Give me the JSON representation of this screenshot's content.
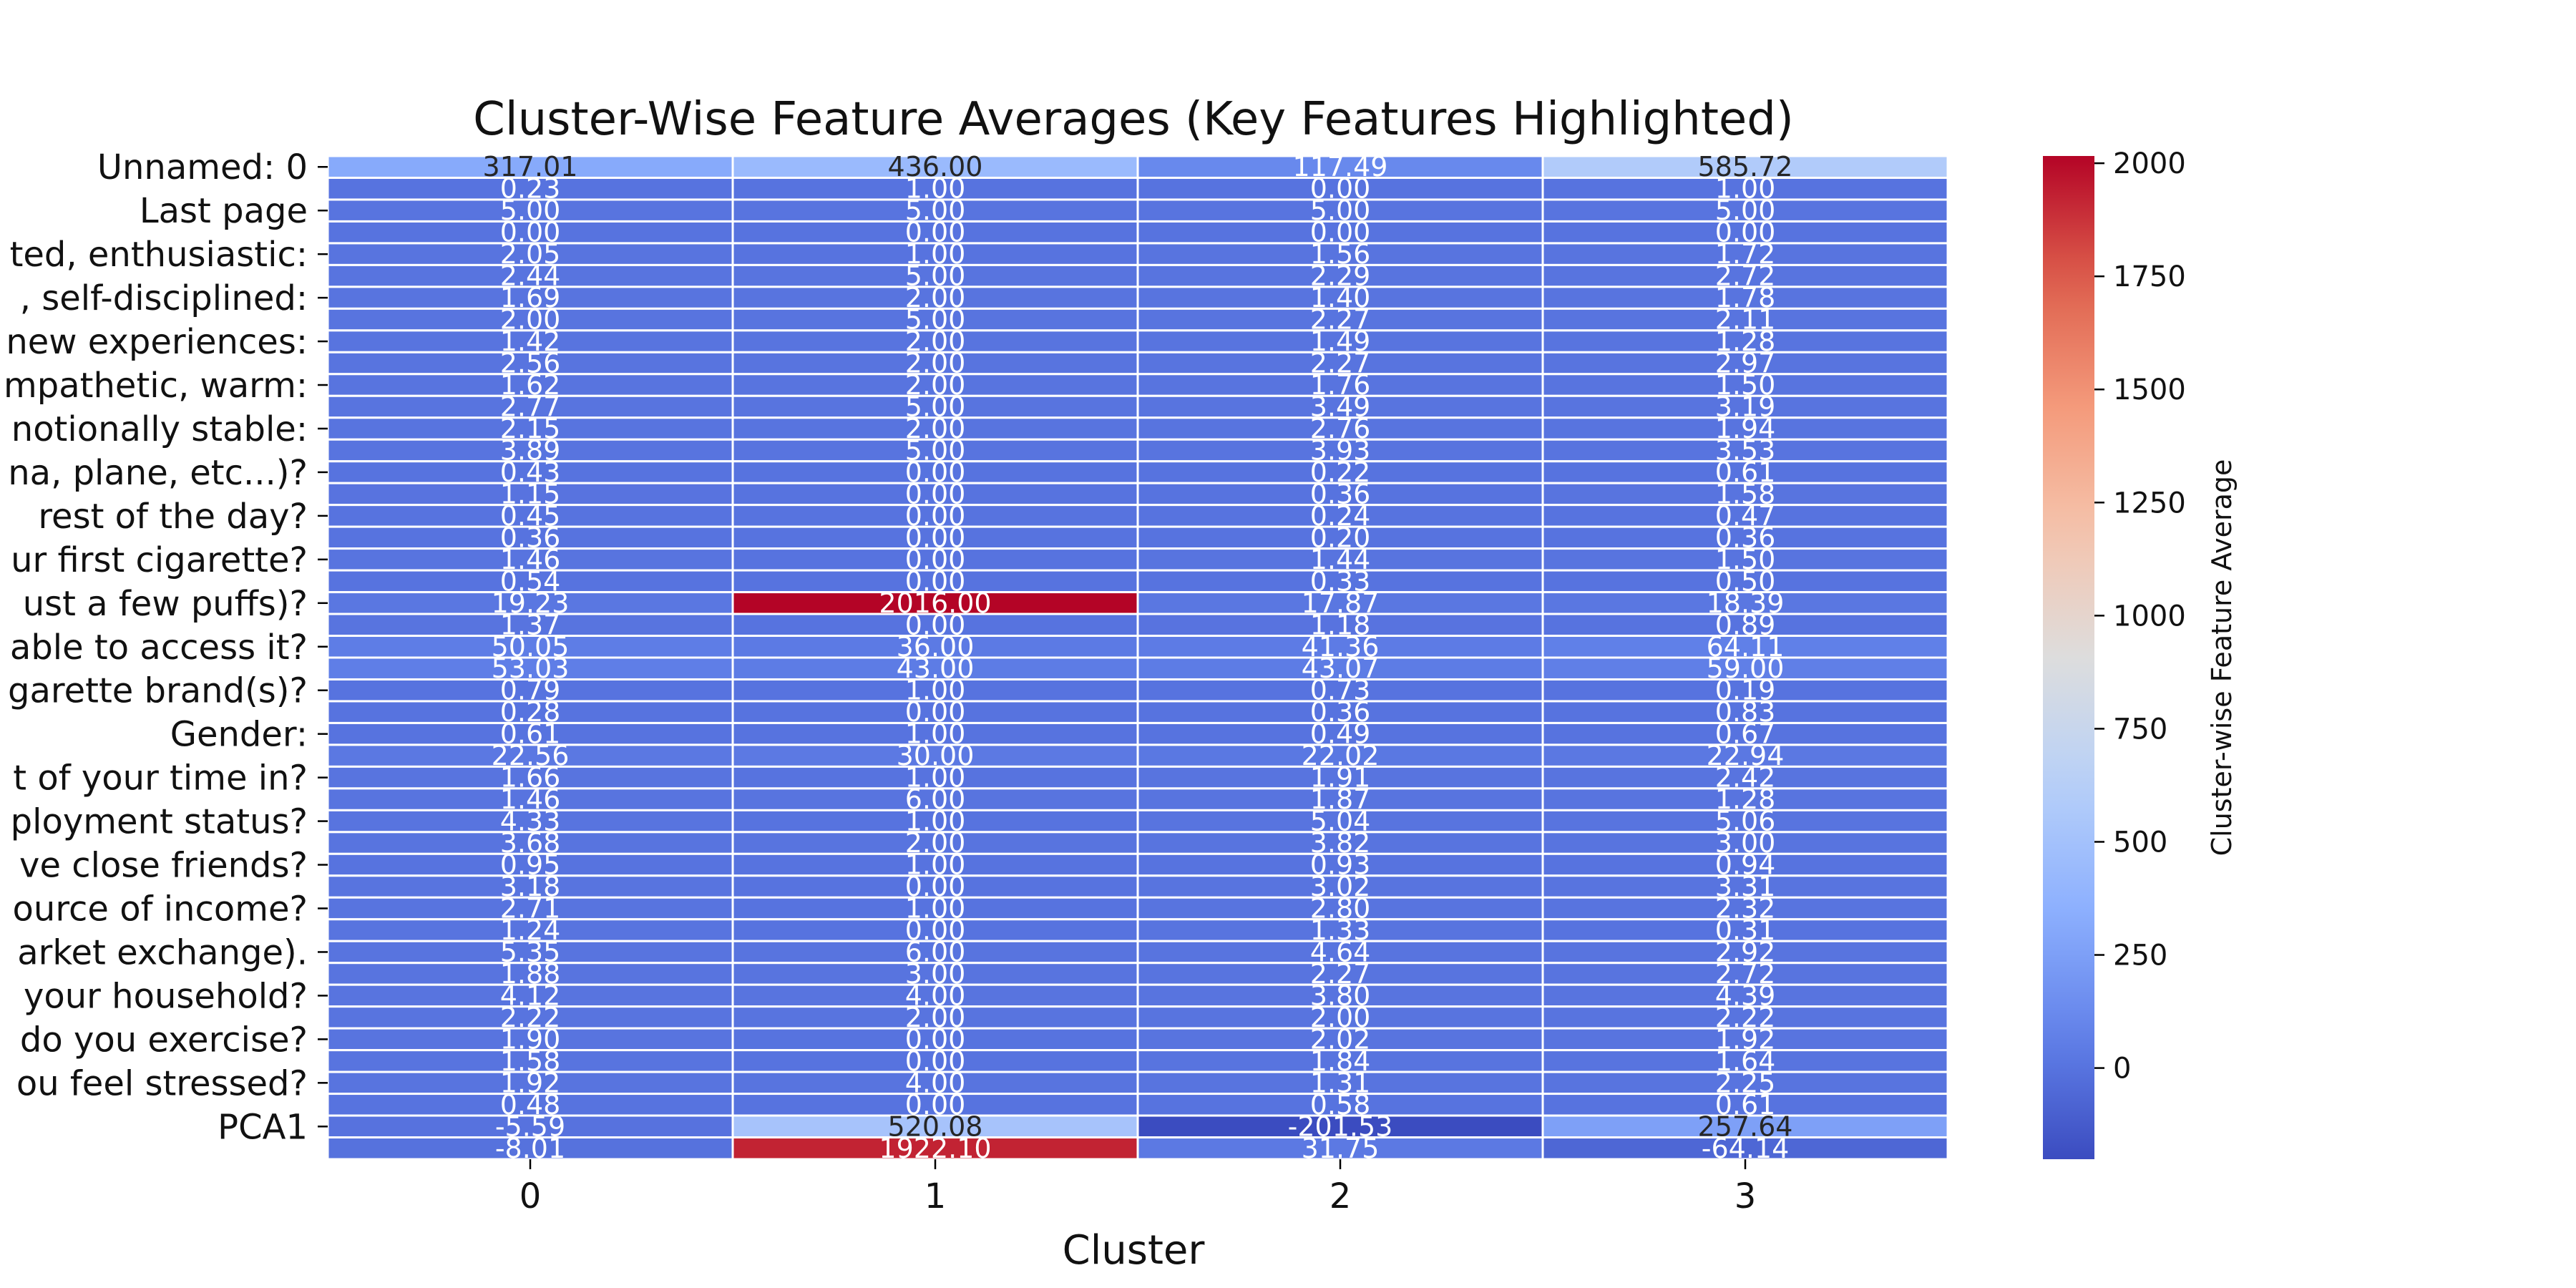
{
  "chart_data": {
    "type": "heatmap",
    "title": "Cluster-Wise Feature Averages (Key Features Highlighted)",
    "xlabel": "Cluster",
    "ylabel": "",
    "x_ticks": [
      "0",
      "1",
      "2",
      "3"
    ],
    "y_tick_labels": [
      "Unnamed: 0",
      "Last page",
      "ted, enthusiastic:",
      ", self-disciplined:",
      "new experiences:",
      "mpathetic, warm:",
      "notionally stable:",
      "na, plane, etc...)?",
      " rest of the day? ",
      "ur first cigarette?",
      "ust a few puffs)?",
      "able to access it?",
      "garette brand(s)?",
      "Gender:",
      "t of your time in?",
      "ployment status?",
      "ve close friends?",
      "ource of income?",
      "arket exchange).",
      " your household?",
      "do you exercise?",
      "ou feel stressed?",
      "PCA1"
    ],
    "colorbar": {
      "label": "Cluster-wise Feature Average",
      "vmin": -201.53,
      "vmax": 2016,
      "ticks": [
        0,
        250,
        500,
        750,
        1000,
        1250,
        1500,
        1750,
        2000
      ],
      "tick_labels": [
        "0",
        "250",
        "500",
        "750",
        "1000",
        "1250",
        "1500",
        "1750",
        "2000"
      ],
      "colormap": "coolwarm"
    },
    "cell_labels": [
      [
        "317.01",
        "436.00",
        "117.49",
        "585.72"
      ],
      [
        "0.23",
        "1.00",
        "0.00",
        "1.00"
      ],
      [
        "5.00",
        "5.00",
        "5.00",
        "5.00"
      ],
      [
        "0.00",
        "0.00",
        "0.00",
        "0.00"
      ],
      [
        "2.05",
        "1.00",
        "1.56",
        "1.72"
      ],
      [
        "2.44",
        "5.00",
        "2.29",
        "2.72"
      ],
      [
        "1.69",
        "2.00",
        "1.40",
        "1.78"
      ],
      [
        "2.00",
        "5.00",
        "2.27",
        "2.11"
      ],
      [
        "1.42",
        "2.00",
        "1.49",
        "1.28"
      ],
      [
        "2.56",
        "2.00",
        "2.27",
        "2.97"
      ],
      [
        "1.62",
        "2.00",
        "1.76",
        "1.50"
      ],
      [
        "2.77",
        "5.00",
        "3.49",
        "3.19"
      ],
      [
        "2.15",
        "2.00",
        "2.76",
        "1.94"
      ],
      [
        "3.89",
        "5.00",
        "3.93",
        "3.53"
      ],
      [
        "0.43",
        "0.00",
        "0.22",
        "0.61"
      ],
      [
        "1.15",
        "0.00",
        "0.36",
        "1.58"
      ],
      [
        "0.45",
        "0.00",
        "0.24",
        "0.47"
      ],
      [
        "0.36",
        "0.00",
        "0.20",
        "0.36"
      ],
      [
        "1.46",
        "0.00",
        "1.44",
        "1.50"
      ],
      [
        "0.54",
        "0.00",
        "0.33",
        "0.50"
      ],
      [
        "19.23",
        "2016.00",
        "17.87",
        "18.39"
      ],
      [
        "1.37",
        "0.00",
        "1.18",
        "0.89"
      ],
      [
        "50.05",
        "36.00",
        "41.36",
        "64.11"
      ],
      [
        "53.03",
        "43.00",
        "43.07",
        "59.00"
      ],
      [
        "0.79",
        "1.00",
        "0.73",
        "0.19"
      ],
      [
        "0.28",
        "0.00",
        "0.36",
        "0.83"
      ],
      [
        "0.61",
        "1.00",
        "0.49",
        "0.67"
      ],
      [
        "22.56",
        "30.00",
        "22.02",
        "22.94"
      ],
      [
        "1.66",
        "1.00",
        "1.91",
        "2.42"
      ],
      [
        "1.46",
        "6.00",
        "1.87",
        "1.28"
      ],
      [
        "4.33",
        "1.00",
        "5.04",
        "5.06"
      ],
      [
        "3.68",
        "2.00",
        "3.82",
        "3.00"
      ],
      [
        "0.95",
        "1.00",
        "0.93",
        "0.94"
      ],
      [
        "3.18",
        "0.00",
        "3.02",
        "3.31"
      ],
      [
        "2.71",
        "1.00",
        "2.80",
        "2.32"
      ],
      [
        "1.24",
        "0.00",
        "1.33",
        "0.31"
      ],
      [
        "5.35",
        "6.00",
        "4.64",
        "2.92"
      ],
      [
        "1.88",
        "3.00",
        "2.27",
        "2.72"
      ],
      [
        "4.12",
        "4.00",
        "3.80",
        "4.39"
      ],
      [
        "2.22",
        "2.00",
        "2.00",
        "2.22"
      ],
      [
        "1.90",
        "0.00",
        "2.02",
        "1.92"
      ],
      [
        "1.58",
        "0.00",
        "1.84",
        "1.64"
      ],
      [
        "1.92",
        "4.00",
        "1.31",
        "2.25"
      ],
      [
        "0.48",
        "0.00",
        "0.58",
        "0.61"
      ],
      [
        "-5.59",
        "520.08",
        "-201.53",
        "257.64"
      ],
      [
        "-8.01",
        "1922.10",
        "31.75",
        "-64.14"
      ]
    ]
  }
}
